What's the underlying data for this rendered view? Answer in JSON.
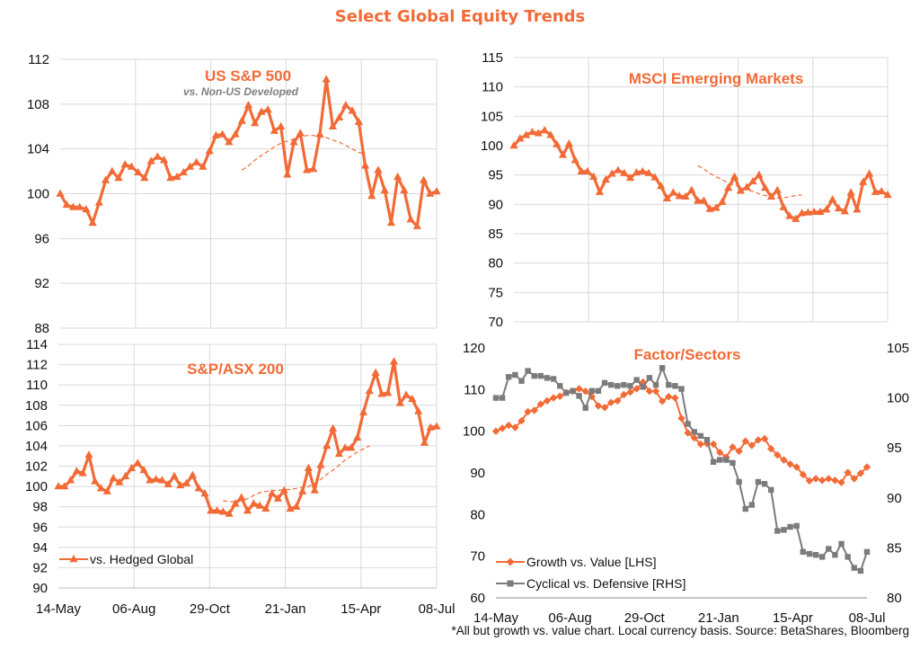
{
  "page": {
    "title": "Select Global Equity Trends",
    "footnote": "*All but growth vs. value chart. Local currency basis. Source: BetaShares, Bloomberg"
  },
  "colors": {
    "accent": "#f26a36",
    "gray": "#7b7b7b",
    "grid": "#d9d9d9"
  },
  "chart_data": [
    {
      "id": "us",
      "type": "line",
      "title": "US S&P 500",
      "subtitle": "vs. Non-US Developed",
      "x_tick_labels": [
        "14-May",
        "06-Aug",
        "29-Oct",
        "21-Jan",
        "15-Apr",
        "08-Jul"
      ],
      "ylim": [
        88,
        112
      ],
      "y_ticks": [
        88,
        92,
        96,
        100,
        104,
        108,
        112
      ],
      "grid": true,
      "series": [
        {
          "role": "main",
          "values": [
            100,
            99,
            98.8,
            98.8,
            98.6,
            97.4,
            99.2,
            101.2,
            102,
            101.4,
            102.6,
            102.4,
            101.9,
            101.4,
            102.9,
            103.3,
            103,
            101.4,
            101.5,
            101.9,
            102.4,
            102.8,
            102.4,
            103.8,
            105.2,
            105.3,
            104.6,
            105.3,
            106.5,
            107.9,
            106.3,
            107.3,
            107.5,
            105.6,
            106,
            101.7,
            104.6,
            105.4,
            102.1,
            102.2,
            105.3,
            110.2,
            106,
            106.8,
            107.9,
            107.4,
            106.4,
            102.5,
            99.8,
            102.1,
            100.3,
            97.4,
            101.5,
            100.3,
            97.7,
            97.1,
            101.2,
            100,
            100.2
          ]
        },
        {
          "role": "trend",
          "x_start": 28,
          "values": [
            102.1,
            102.5,
            103,
            103.4,
            103.8,
            104.2,
            104.5,
            104.7,
            104.9,
            105.1,
            105.2,
            105.2,
            105.1,
            105,
            104.8,
            104.6,
            104.3,
            104,
            103.7,
            103.5
          ]
        }
      ]
    },
    {
      "id": "em",
      "type": "line",
      "title": "MSCI Emerging Markets",
      "ylim": [
        70,
        115
      ],
      "y_ticks": [
        70,
        75,
        80,
        85,
        90,
        95,
        100,
        105,
        110,
        115
      ],
      "grid": true,
      "series": [
        {
          "role": "main",
          "values": [
            100,
            101.2,
            101.8,
            102.3,
            102.1,
            102.6,
            101.8,
            100.2,
            98.4,
            100.3,
            97.5,
            95.6,
            95.6,
            94.7,
            92.1,
            94.2,
            95.2,
            95.8,
            95.3,
            94.5,
            95.4,
            95.6,
            95.3,
            94.6,
            93.1,
            91,
            92,
            91.4,
            91.3,
            92.4,
            90.6,
            90.6,
            89.2,
            89.4,
            90.4,
            92.8,
            94.7,
            92.3,
            92.9,
            93.9,
            95,
            92.8,
            91.3,
            92.4,
            89.5,
            88,
            87.5,
            88.5,
            88.6,
            88.7,
            88.7,
            89.1,
            90.8,
            89.3,
            88.8,
            92,
            89.1,
            93.8,
            95.2,
            92.1,
            92.2,
            91.6
          ]
        },
        {
          "role": "trend",
          "x_start": 30,
          "values": [
            96.6,
            96,
            95.3,
            94.7,
            94.2,
            93.6,
            93.3,
            92.9,
            92.5,
            92.2,
            91.8,
            91.5,
            91.3,
            91.1,
            91.1,
            91.3,
            91.5,
            91.6
          ]
        }
      ]
    },
    {
      "id": "asx",
      "type": "line",
      "title": "S&P/ASX 200",
      "ylim": [
        90,
        114
      ],
      "y_ticks": [
        90,
        92,
        94,
        96,
        98,
        100,
        102,
        104,
        106,
        108,
        110,
        112,
        114
      ],
      "grid": true,
      "legend": {
        "position": "bottom-left",
        "entries": [
          "vs. Hedged Global"
        ]
      },
      "series": [
        {
          "role": "main",
          "name": "vs. Hedged Global",
          "values": [
            100,
            100,
            100.6,
            101.5,
            101.3,
            103.1,
            100.5,
            99.8,
            99.5,
            100.8,
            100.4,
            101,
            101.8,
            102.3,
            101.6,
            100.6,
            100.7,
            100.6,
            100.2,
            101,
            100.1,
            100.3,
            101.1,
            99.8,
            99.3,
            97.6,
            97.6,
            97.5,
            97.3,
            98.3,
            98.9,
            97.6,
            98.3,
            98.1,
            97.8,
            99.3,
            98.8,
            99.6,
            97.8,
            98,
            99.5,
            101.8,
            99.6,
            102.1,
            104,
            105.7,
            103.2,
            103.8,
            103.8,
            104.8,
            107.3,
            109.4,
            111.2,
            109.1,
            109.2,
            112.3,
            108.2,
            109,
            108.6,
            107.4,
            104.3,
            105.8,
            105.9
          ]
        },
        {
          "role": "trend",
          "x_start": 27,
          "values": [
            98.6,
            98.5,
            98.5,
            98.6,
            98.8,
            99.1,
            99.4,
            99.5,
            99.6,
            99.6,
            99.7,
            99.7,
            99.8,
            99.9,
            100,
            100.3,
            100.7,
            101.2,
            101.6,
            102.1,
            102.6,
            103,
            103.4,
            103.7,
            104
          ]
        }
      ]
    },
    {
      "id": "factor",
      "type": "line",
      "title": "Factor/Sectors",
      "x_tick_labels": [
        "14-May",
        "06-Aug",
        "29-Oct",
        "21-Jan",
        "15-Apr",
        "08-Jul"
      ],
      "ylim": [
        60,
        120
      ],
      "y_ticks": [
        60,
        70,
        80,
        90,
        100,
        110,
        120
      ],
      "y2lim": [
        80,
        105
      ],
      "y2_ticks": [
        80,
        85,
        90,
        95,
        100,
        105
      ],
      "grid": false,
      "legend": {
        "position": "bottom-left",
        "entries": [
          "Growth vs. Value [LHS]",
          "Cyclical vs. Defensive [RHS]"
        ]
      },
      "series": [
        {
          "name": "Growth vs. Value [LHS]",
          "axis": "left",
          "marker": "diamond",
          "values": [
            100,
            100.7,
            101.4,
            100.9,
            102.5,
            104.7,
            105,
            106.5,
            107.3,
            108,
            108.4,
            109.3,
            109.6,
            110.2,
            109.6,
            108.3,
            106.1,
            105.7,
            106.9,
            107.3,
            108.8,
            109.4,
            110.2,
            111.8,
            109.6,
            109.6,
            107.2,
            108.3,
            108,
            103.1,
            99.6,
            98.4,
            96.9,
            97,
            96.9,
            94.9,
            93.8,
            96.2,
            95.2,
            97.6,
            96.6,
            97.9,
            98.2,
            95.8,
            94.3,
            93.1,
            92.1,
            91.4,
            89.6,
            88.1,
            88.6,
            88.2,
            88.6,
            88.2,
            87.7,
            90.1,
            88.6,
            89.9,
            91.4
          ]
        },
        {
          "name": "Cyclical vs. Defensive [RHS]",
          "axis": "right",
          "marker": "square",
          "values": [
            100,
            100,
            102.1,
            102.3,
            101.7,
            102.7,
            102.2,
            102.2,
            102,
            101.9,
            101.2,
            100.5,
            100.7,
            100.2,
            99,
            100.7,
            100.7,
            101.5,
            101.3,
            101.2,
            101.3,
            101.2,
            101.8,
            101.1,
            102,
            101.3,
            103,
            101.3,
            101.2,
            100.9,
            97.4,
            96.6,
            96.2,
            95.8,
            93.6,
            93.8,
            93.8,
            93.5,
            91.6,
            88.9,
            89.3,
            91.6,
            91.4,
            90.8,
            86.7,
            86.8,
            87.1,
            87.2,
            84.6,
            84.4,
            84.3,
            84.1,
            84.9,
            84.3,
            85.4,
            84.1,
            83,
            82.7,
            84.6
          ]
        }
      ]
    }
  ]
}
